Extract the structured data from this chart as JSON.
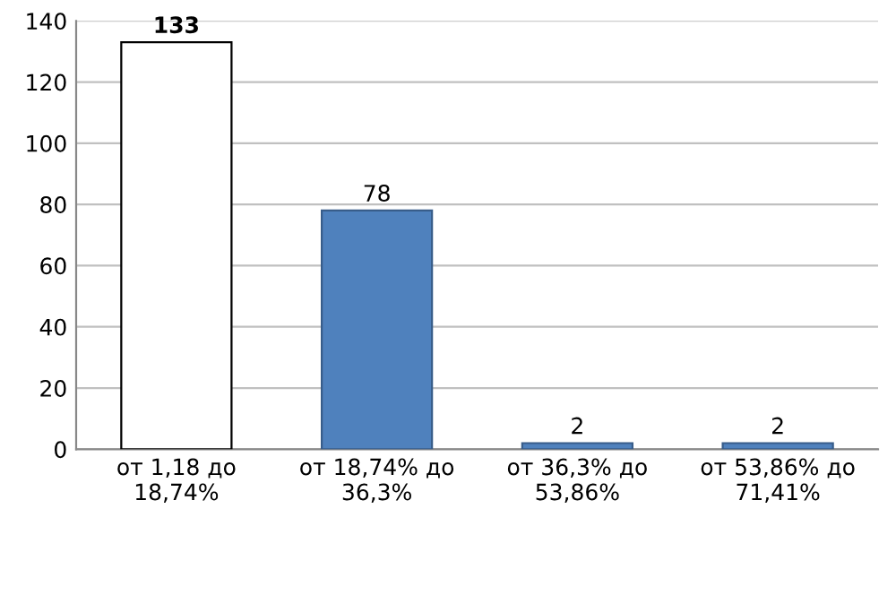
{
  "chart_data": {
    "type": "bar",
    "categories": [
      "от 1,18 до\n18,74%",
      "от 18,74% до\n36,3%",
      "от 36,3% до\n53,86%",
      "от 53,86% до\n71,41%"
    ],
    "values": [
      133,
      78,
      2,
      2
    ],
    "colors": [
      "#ffffff",
      "#4f81bd",
      "#4f81bd",
      "#4f81bd"
    ],
    "ylim": [
      0,
      140
    ],
    "yticks": [
      0,
      20,
      40,
      60,
      80,
      100,
      120,
      140
    ],
    "grid": "y",
    "data_labels": true,
    "legend": false
  }
}
